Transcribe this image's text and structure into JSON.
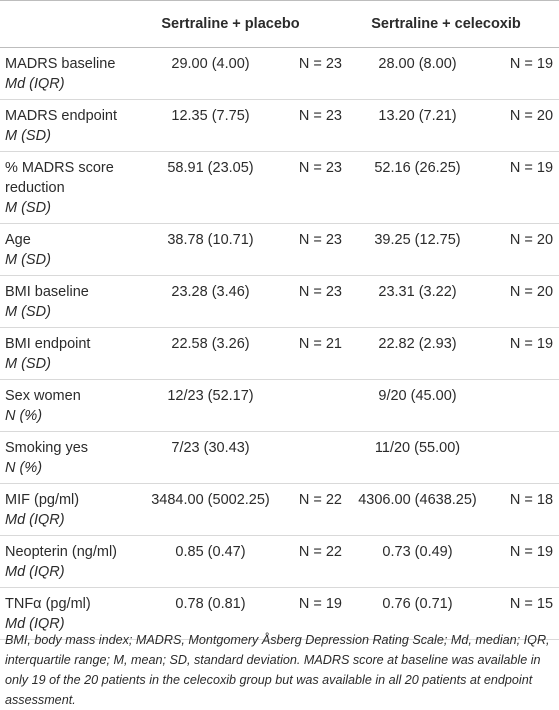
{
  "table": {
    "headers": [
      "Sertraline + placebo",
      "Sertraline + celecoxib"
    ],
    "rows": [
      {
        "label": "MADRS baseline",
        "stat": "Md (IQR)",
        "cells": [
          "29.00 (4.00)",
          "N = 23",
          "28.00 (8.00)",
          "N = 19"
        ]
      },
      {
        "label": "MADRS endpoint",
        "stat": "M (SD)",
        "cells": [
          "12.35 (7.75)",
          "N = 23",
          "13.20 (7.21)",
          "N = 20"
        ]
      },
      {
        "label": "% MADRS score reduction",
        "stat": "M (SD)",
        "cells": [
          "58.91 (23.05)",
          "N = 23",
          "52.16 (26.25)",
          "N = 19"
        ]
      },
      {
        "label": "Age",
        "stat": "M (SD)",
        "cells": [
          "38.78 (10.71)",
          "N = 23",
          "39.25 (12.75)",
          "N = 20"
        ]
      },
      {
        "label": "BMI baseline",
        "stat": "M (SD)",
        "cells": [
          "23.28 (3.46)",
          "N = 23",
          "23.31 (3.22)",
          "N = 20"
        ]
      },
      {
        "label": "BMI endpoint",
        "stat": "M (SD)",
        "cells": [
          "22.58 (3.26)",
          "N = 21",
          "22.82 (2.93)",
          "N = 19"
        ]
      },
      {
        "label": "Sex women",
        "stat": "N (%)",
        "cells": [
          "12/23 (52.17)",
          null,
          "9/20 (45.00)",
          null
        ]
      },
      {
        "label": "Smoking yes",
        "stat": "N (%)",
        "cells": [
          "7/23 (30.43)",
          null,
          "11/20 (55.00)",
          null
        ]
      },
      {
        "label": "MIF (pg/ml)",
        "stat": "Md (IQR)",
        "cells": [
          "3484.00 (5002.25)",
          "N = 22",
          "4306.00 (4638.25)",
          "N = 18"
        ]
      },
      {
        "label": "Neopterin (ng/ml)",
        "stat": "Md (IQR)",
        "cells": [
          "0.85 (0.47)",
          "N = 22",
          "0.73 (0.49)",
          "N = 19"
        ]
      },
      {
        "label": "TNFα (pg/ml)",
        "stat": "Md (IQR)",
        "cells": [
          "0.78 (0.81)",
          "N = 19",
          "0.76 (0.71)",
          "N = 15"
        ]
      }
    ]
  },
  "footnote": "BMI, body mass index; MADRS, Montgomery Åsberg Depression Rating Scale; Md, median; IQR, interquartile range; M, mean; SD, standard deviation. MADRS score at baseline was available in only 19 of the 20 patients in the celecoxib group but was available in all 20 patients at endpoint assessment."
}
